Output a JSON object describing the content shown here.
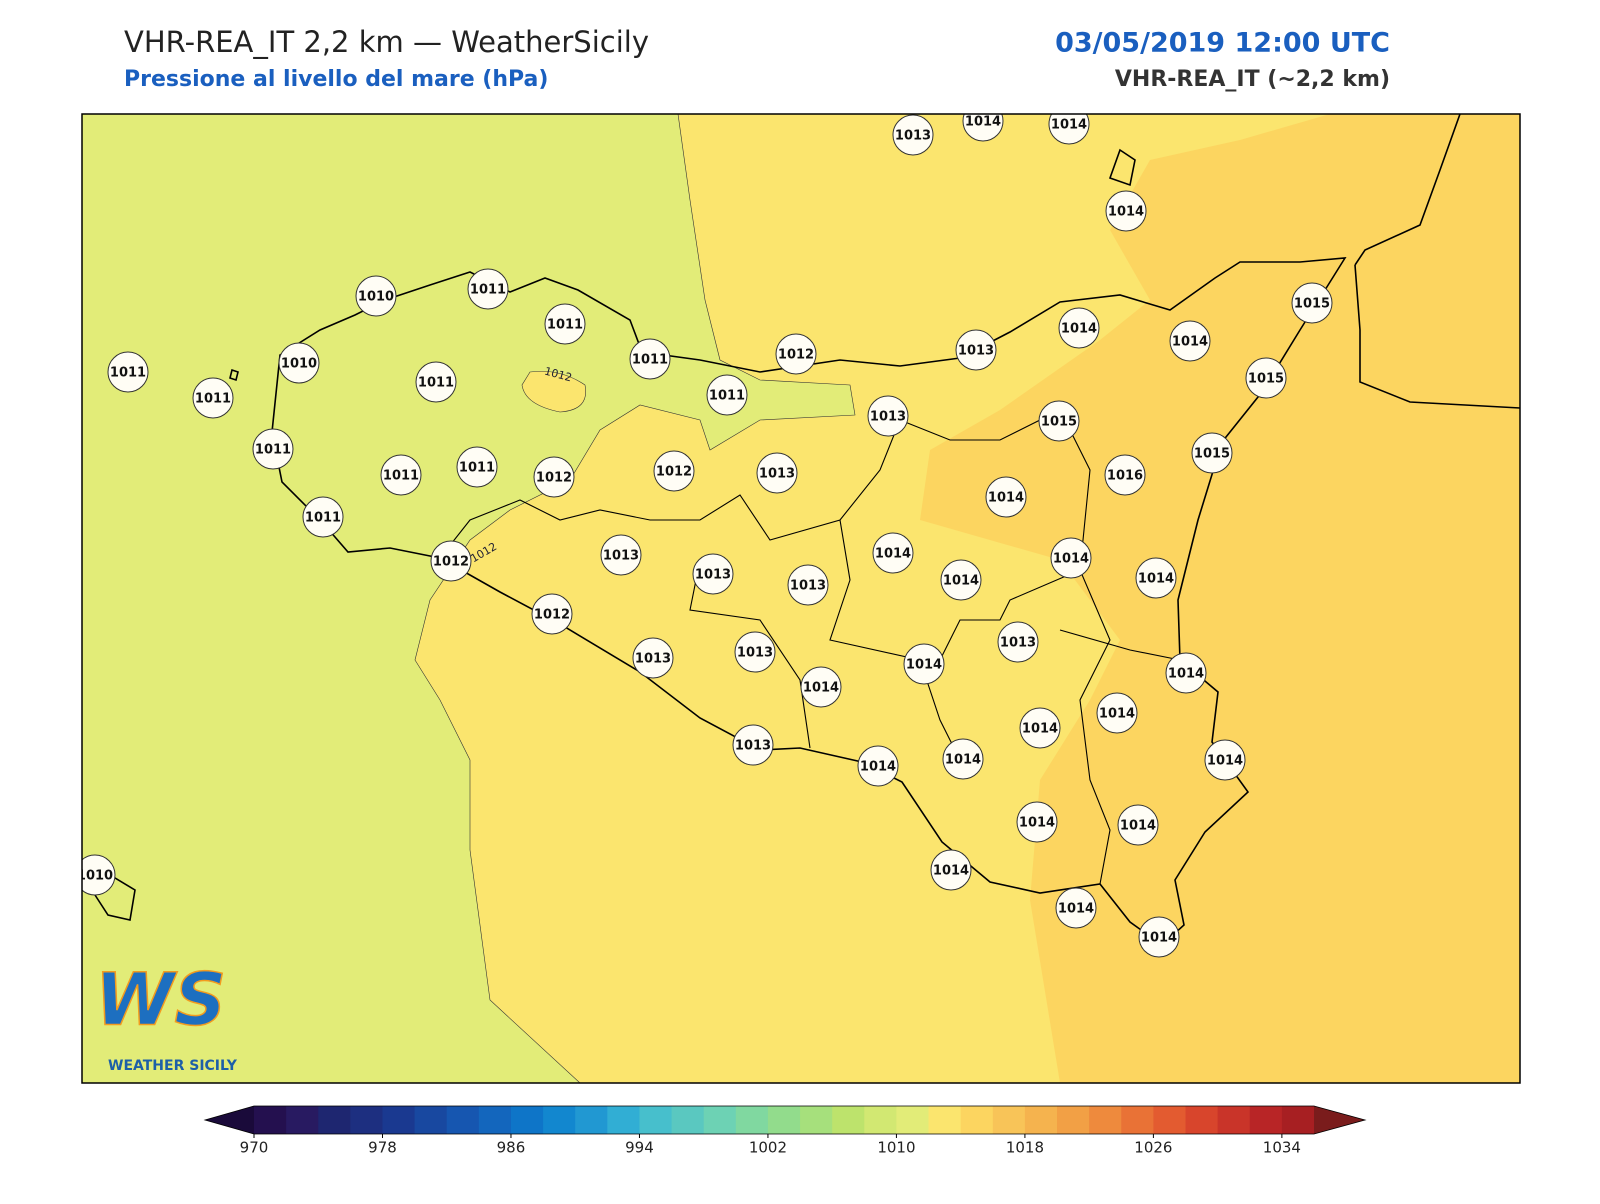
{
  "header": {
    "title": "VHR-REA_IT 2,2 km — WeatherSicily",
    "subtitle": "Pressione al livello del mare (hPa)",
    "datetime": "03/05/2019 12:00 UTC",
    "model": "VHR-REA_IT (~2,2 km)"
  },
  "stations": [
    1013,
    1014,
    1014,
    1014,
    1010,
    1011,
    1011,
    1011,
    1011,
    1012,
    1013,
    1014,
    1014,
    1015,
    1015,
    1011,
    1010,
    1011,
    1011,
    1013,
    1015,
    1015,
    1011,
    1011,
    1011,
    1012,
    1012,
    1013,
    1016,
    1014,
    1011,
    1013,
    1012,
    1013,
    1013,
    1014,
    1014,
    1014,
    1014,
    1012,
    1013,
    1013,
    1013,
    1014,
    1014,
    1014,
    1014,
    1014,
    1013,
    1014,
    1014,
    1014,
    1014,
    1014,
    1014,
    1014,
    1014,
    1010
  ],
  "contour_labels": [
    1012,
    1012
  ],
  "logo": {
    "mark": "WS",
    "name": "WEATHER SICILY"
  },
  "colorbar": {
    "lim": [
      970,
      1036
    ],
    "ticks": [
      970,
      978,
      986,
      994,
      1002,
      1010,
      1018,
      1026,
      1034
    ],
    "colors": [
      "#24104f",
      "#281a61",
      "#1e2670",
      "#1d2f80",
      "#1a3990",
      "#1848a0",
      "#1656b0",
      "#1366bd",
      "#0e75c8",
      "#1287cf",
      "#2198d2",
      "#31aed4",
      "#47bfcc",
      "#5ac8c0",
      "#6dd2b4",
      "#80d8a0",
      "#92dc8c",
      "#a6e07c",
      "#bde36c",
      "#d2e872",
      "#e2ec78",
      "#fbe56e",
      "#fcd560",
      "#f8c458",
      "#f5b34e",
      "#f2a045",
      "#ee8a3d",
      "#e97236",
      "#e35b30",
      "#d8452c",
      "#c93429",
      "#b82526",
      "#a71f22"
    ],
    "under": "#1a0a3a",
    "over": "#7a1c1c"
  }
}
